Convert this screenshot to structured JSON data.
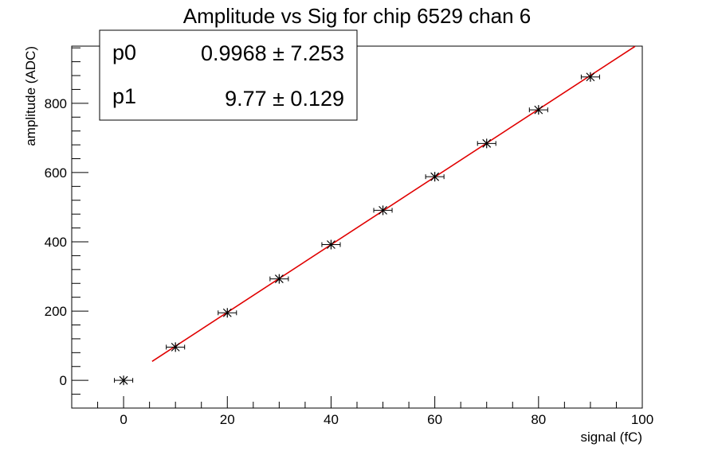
{
  "chart_data": {
    "type": "scatter",
    "title": "Amplitude vs Sig for chip 6529 chan 6",
    "xlabel": "signal (fC)",
    "ylabel": "amplitude (ADC)",
    "xlim": [
      -10,
      100
    ],
    "ylim": [
      -80,
      965
    ],
    "x_ticks": [
      0,
      20,
      40,
      60,
      80,
      100
    ],
    "y_ticks": [
      0,
      200,
      400,
      600,
      800
    ],
    "grid": false,
    "series": [
      {
        "marker": "star",
        "color": "#000000",
        "x": [
          0,
          10,
          20,
          30,
          40,
          50,
          60,
          70,
          80,
          90
        ],
        "y": [
          0,
          96,
          195,
          293,
          392,
          491,
          588,
          684,
          781,
          876
        ],
        "x_err": [
          1,
          1,
          1,
          1,
          1,
          1,
          1,
          1,
          1,
          1
        ],
        "y_err": [
          3,
          3,
          3,
          3,
          3,
          3,
          3,
          3,
          3,
          3
        ]
      }
    ],
    "fit": {
      "type": "line",
      "color": "#e00000",
      "intercept": 0.9968,
      "slope": 9.77,
      "x_range": [
        5.5,
        98.6
      ]
    },
    "stats_box": {
      "position": "top-left",
      "rows": [
        {
          "name": "p0",
          "value": "0.9968 ± 7.253"
        },
        {
          "name": "p1",
          "value": "9.77 ± 0.129"
        }
      ]
    }
  }
}
